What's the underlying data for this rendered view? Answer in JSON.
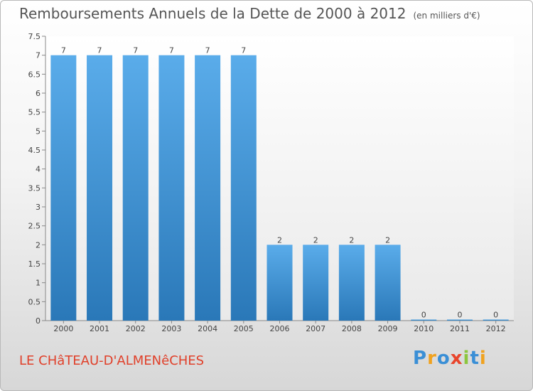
{
  "title": "Remboursements Annuels de la Dette de 2000 à 2012",
  "unit": "(en milliers d'€)",
  "commune": "LE CHâTEAU-D'ALMENêCHES",
  "logo": {
    "letters": [
      "P",
      "r",
      "o",
      "x",
      "i",
      "t",
      "i"
    ],
    "colors": [
      "#3a8fd6",
      "#f0a21f",
      "#3a8fd6",
      "#e8452c",
      "#8cc63f",
      "#3a8fd6",
      "#f0a21f"
    ]
  },
  "chart_data": {
    "type": "bar",
    "title": "Remboursements Annuels de la Dette de 2000 à 2012",
    "categories": [
      "2000",
      "2001",
      "2002",
      "2003",
      "2004",
      "2005",
      "2006",
      "2007",
      "2008",
      "2009",
      "2010",
      "2011",
      "2012"
    ],
    "values": [
      7,
      7,
      7,
      7,
      7,
      7,
      2,
      2,
      2,
      2,
      0,
      0,
      0
    ],
    "data_labels": [
      "7",
      "7",
      "7",
      "7",
      "7",
      "7",
      "2",
      "2",
      "2",
      "2",
      "0",
      "0",
      "0"
    ],
    "ylim": [
      0,
      7.5
    ],
    "y_ticks": [
      {
        "value": 0,
        "label": "0"
      },
      {
        "value": 0.5,
        "label": "0.5"
      },
      {
        "value": 1,
        "label": "1"
      },
      {
        "value": 1.5,
        "label": "1.5"
      },
      {
        "value": 2,
        "label": "2"
      },
      {
        "value": 2.5,
        "label": "2.5"
      },
      {
        "value": 3,
        "label": "3"
      },
      {
        "value": 3.5,
        "label": "3.5"
      },
      {
        "value": 4,
        "label": "4"
      },
      {
        "value": 4.5,
        "label": "4.5"
      },
      {
        "value": 5,
        "label": "5"
      },
      {
        "value": 5.5,
        "label": "5.5"
      },
      {
        "value": 6,
        "label": "6"
      },
      {
        "value": 6.5,
        "label": "6.5"
      },
      {
        "value": 7,
        "label": "7"
      },
      {
        "value": 7.5,
        "label": "7.5"
      }
    ],
    "grid": false,
    "bar_color": "#4fa3e3"
  }
}
